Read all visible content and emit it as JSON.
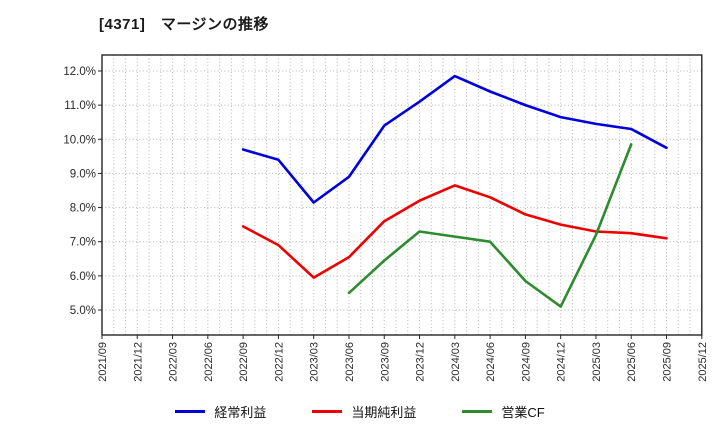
{
  "chart_data": {
    "type": "line",
    "title": "[4371]　マージンの推移",
    "unit": "%",
    "xlabel": "",
    "ylabel": "",
    "grid": "dotted",
    "legend_position": "bottom",
    "ylim": [
      4.3,
      12.5
    ],
    "categories": [
      "2021/09",
      "2021/12",
      "2022/03",
      "2022/06",
      "2022/09",
      "2022/12",
      "2023/03",
      "2023/06",
      "2023/09",
      "2023/12",
      "2024/03",
      "2024/06",
      "2024/09",
      "2024/12",
      "2025/03",
      "2025/06",
      "2025/09",
      "2025/12"
    ],
    "y_tick_values": [
      12,
      11,
      10,
      9,
      8,
      7,
      6,
      5
    ],
    "y_tick_labels": [
      "12.0%",
      "11.0%",
      "10.0%",
      "9.0%",
      "8.0%",
      "7.0%",
      "6.0%",
      "5.0%"
    ],
    "series": [
      {
        "name": "経常利益",
        "color": "#0000dd",
        "values": [
          null,
          null,
          null,
          null,
          9.7,
          9.4,
          8.15,
          8.9,
          10.4,
          11.1,
          11.85,
          11.4,
          11.0,
          10.65,
          10.45,
          10.3,
          9.75,
          null
        ]
      },
      {
        "name": "当期純利益",
        "color": "#ee0000",
        "values": [
          null,
          null,
          null,
          null,
          7.45,
          6.9,
          5.95,
          6.55,
          7.6,
          8.2,
          8.65,
          8.3,
          7.8,
          7.5,
          7.3,
          7.25,
          7.1,
          null
        ]
      },
      {
        "name": "営業CF",
        "color": "#2e8b2e",
        "values": [
          null,
          null,
          null,
          null,
          null,
          null,
          null,
          5.5,
          6.45,
          7.3,
          7.15,
          7.0,
          5.85,
          5.1,
          7.2,
          9.85,
          null,
          null
        ]
      }
    ]
  }
}
